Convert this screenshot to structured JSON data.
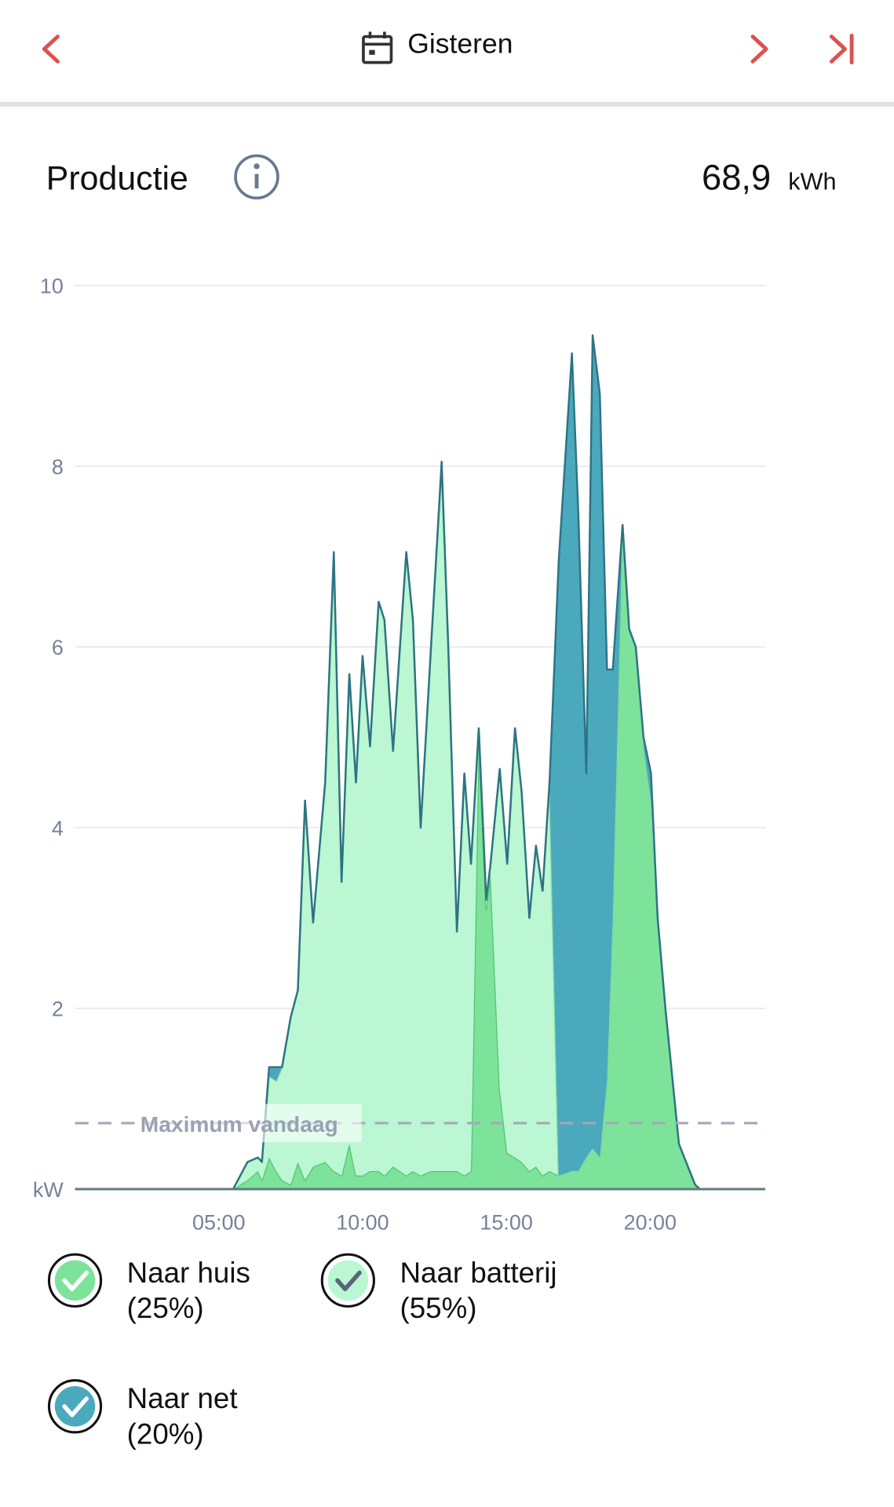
{
  "header": {
    "title": "Gisteren"
  },
  "section": {
    "title": "Productie",
    "total": "68,9",
    "unit": "kWh"
  },
  "chart_data": {
    "type": "stacked-area",
    "x": [
      0,
      5.5,
      6.0,
      6.36,
      6.5,
      6.75,
      7.0,
      7.2,
      7.5,
      7.75,
      8.0,
      8.28,
      8.7,
      9.0,
      9.27,
      9.54,
      9.77,
      10.0,
      10.26,
      10.56,
      10.76,
      11.06,
      11.52,
      11.75,
      12.02,
      12.38,
      12.75,
      12.98,
      13.28,
      13.54,
      13.77,
      14.04,
      14.3,
      14.45,
      14.77,
      15.03,
      15.3,
      15.53,
      15.8,
      16.03,
      16.26,
      16.5,
      16.82,
      17.28,
      17.5,
      17.78,
      18.0,
      18.25,
      18.5,
      18.7,
      19.04,
      19.27,
      19.5,
      19.77,
      20.03,
      20.26,
      20.53,
      21.0,
      21.56,
      21.73,
      24
    ],
    "series": [
      {
        "name": "Naar huis",
        "share": "(25%)",
        "color": "#7de39a",
        "line": "#55c172",
        "values": [
          0,
          0,
          0.1,
          0.2,
          0.1,
          0.35,
          0.2,
          0.1,
          0.05,
          0.3,
          0.1,
          0.25,
          0.3,
          0.2,
          0.15,
          0.5,
          0.15,
          0.15,
          0.2,
          0.2,
          0.15,
          0.25,
          0.15,
          0.2,
          0.15,
          0.2,
          0.2,
          0.2,
          0.2,
          0.15,
          0.2,
          5.0,
          3.1,
          3.5,
          1.1,
          0.4,
          0.35,
          0.3,
          0.2,
          0.25,
          0.15,
          0.2,
          0.15,
          0.2,
          0.2,
          0.35,
          0.45,
          0.35,
          1.2,
          3.0,
          7.35,
          6.2,
          6.0,
          4.9,
          4.3,
          3.0,
          2.0,
          0.5,
          0.05,
          0,
          0
        ]
      },
      {
        "name": "Naar batterij",
        "share": "(55%)",
        "color": "#baf7d2",
        "line": "#86dca2",
        "values": [
          0,
          0,
          0.2,
          0.15,
          0.2,
          0.9,
          1.0,
          1.25,
          1.85,
          1.9,
          4.2,
          2.7,
          4.2,
          6.8,
          3.25,
          5.2,
          4.35,
          5.75,
          4.7,
          6.3,
          6.15,
          4.6,
          6.9,
          6.1,
          3.85,
          5.8,
          7.8,
          5.8,
          2.65,
          4.45,
          3.4,
          0.1,
          0.1,
          0.1,
          3.55,
          3.2,
          4.75,
          4.1,
          2.8,
          3.55,
          3.15,
          4.3,
          0,
          0,
          0,
          0,
          0,
          0,
          0,
          0,
          0,
          0,
          0,
          0,
          0,
          0,
          0,
          0,
          0,
          0,
          0
        ]
      },
      {
        "name": "Naar net",
        "share": "(20%)",
        "color": "#4aa9bc",
        "line": "#2e7384",
        "values": [
          0,
          0,
          0,
          0,
          0,
          0.1,
          0.15,
          0,
          0,
          0,
          0,
          0,
          0,
          0.05,
          0,
          0,
          0,
          0,
          0,
          0,
          0,
          0,
          0,
          0,
          0,
          0,
          0.05,
          0,
          0,
          0,
          0,
          0,
          0,
          0,
          0,
          0,
          0,
          0,
          0,
          0,
          0,
          0,
          6.8,
          9.05,
          7.3,
          4.25,
          9.0,
          8.45,
          4.55,
          2.75,
          0,
          0,
          0,
          0.1,
          0.3,
          0,
          0,
          0,
          0,
          0,
          0
        ]
      }
    ],
    "xlim": [
      0,
      24
    ],
    "xticks": [
      {
        "value": 5,
        "label": "05:00"
      },
      {
        "value": 10,
        "label": "10:00"
      },
      {
        "value": 15,
        "label": "15:00"
      },
      {
        "value": 20,
        "label": "20:00"
      }
    ],
    "ylim": [
      0,
      10
    ],
    "yticks": [
      {
        "value": 0,
        "label": "kW"
      },
      2,
      4,
      6,
      8,
      10
    ],
    "grid": true,
    "annotation": {
      "text": "Maximum vandaag",
      "value": 0.73
    }
  }
}
